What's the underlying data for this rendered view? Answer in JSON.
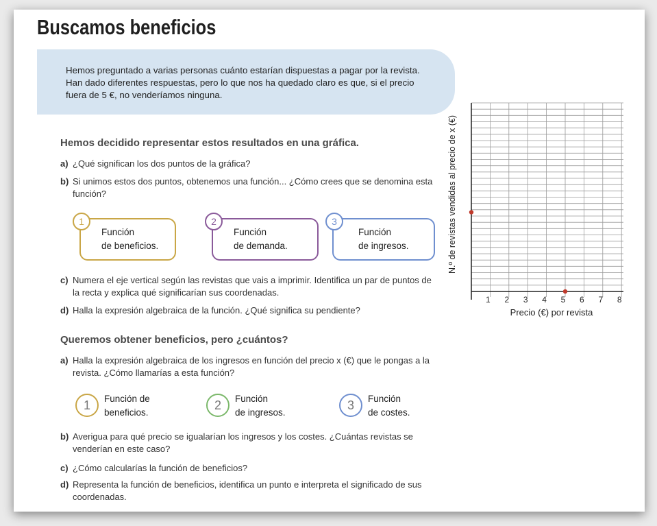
{
  "page": {
    "title": "Buscamos beneficios",
    "intro": "Hemos preguntado a varias personas cuánto estarían dispuestas a pagar por la revista. Han dado diferentes respuestas, pero lo que nos ha quedado claro es que, si el precio fuera de 5 €, no venderíamos ninguna."
  },
  "section1": {
    "heading": "Hemos decidido representar estos resultados en una gráfica.",
    "a_label": "a)",
    "a_text": "¿Qué significan los dos puntos de la gráfica?",
    "b_label": "b)",
    "b_text": "Si unimos estos dos puntos, obtenemos una función... ¿Cómo crees que se denomina esta función?",
    "options": [
      {
        "num": "1",
        "line1": "Función",
        "line2": "de beneficios.",
        "color": "#c9a646"
      },
      {
        "num": "2",
        "line1": "Función",
        "line2": "de demanda.",
        "color": "#8a5a9a"
      },
      {
        "num": "3",
        "line1": "Función",
        "line2": "de ingresos.",
        "color": "#6f8fcf"
      }
    ],
    "c_label": "c)",
    "c_text": "Numera el eje vertical según las revistas que vais a imprimir. Identifica un par de puntos de la recta y explica qué significarían sus coordenadas.",
    "d_label": "d)",
    "d_text": "Halla la expresión algebraica de la función. ¿Qué significa su pendiente?"
  },
  "section2": {
    "heading": "Queremos obtener beneficios, pero ¿cuántos?",
    "a_label": "a)",
    "a_text": "Halla la expresión algebraica de los ingresos en función del precio x (€) que le pongas a la revista. ¿Cómo llamarías a esta función?",
    "options": [
      {
        "num": "1",
        "line1": "Función de",
        "line2": "beneficios.",
        "color": "#c9a646"
      },
      {
        "num": "2",
        "line1": "Función",
        "line2": "de ingresos.",
        "color": "#7bb86a"
      },
      {
        "num": "3",
        "line1": "Función",
        "line2": "de costes.",
        "color": "#6f8fcf"
      }
    ],
    "b_label": "b)",
    "b_text": "Averigua para qué precio se igualarían los ingresos y los costes. ¿Cuántas revistas se venderían en este caso?",
    "c_label": "c)",
    "c_text": "¿Cómo calcularías la función de beneficios?",
    "d_label": "d)",
    "d_text": "Representa la función de beneficios, identifica un punto e interpreta el significado de sus coordenadas."
  },
  "chart_data": {
    "type": "scatter",
    "xlabel": "Precio (€) por revista",
    "ylabel": "N.º de revistas vendidas al precio de x (€)",
    "x_ticks": [
      1,
      2,
      3,
      4,
      5,
      6,
      7,
      8
    ],
    "xlim": [
      0,
      8
    ],
    "points": [
      {
        "x": 0,
        "y": "unlabeled (on vertical axis)"
      },
      {
        "x": 5,
        "y": 0
      }
    ],
    "grid": true,
    "point_color": "#c0392b"
  }
}
